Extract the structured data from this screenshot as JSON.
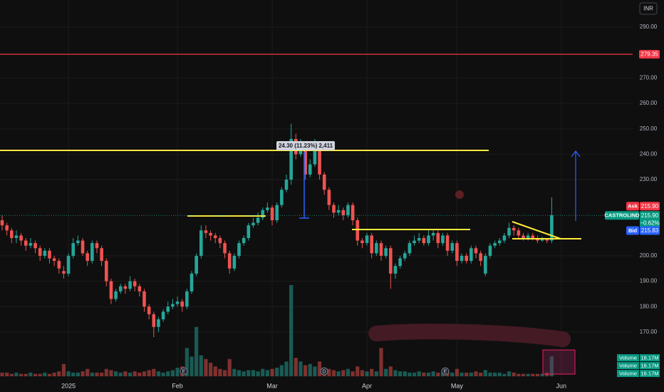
{
  "chart_data": {
    "type": "candlestick",
    "currency": "INR",
    "categories": [
      null,
      null,
      null,
      null,
      null,
      null,
      null,
      null,
      null,
      null,
      null,
      null,
      null,
      null,
      "2025",
      null,
      null,
      null,
      null,
      null,
      null,
      null,
      null,
      null,
      null,
      null,
      null,
      null,
      null,
      null,
      null,
      null,
      null,
      null,
      null,
      null,
      null,
      "Feb",
      null,
      null,
      null,
      null,
      null,
      null,
      null,
      null,
      null,
      null,
      null,
      null,
      null,
      null,
      null,
      null,
      null,
      null,
      null,
      "Mar",
      null,
      null,
      null,
      null,
      null,
      null,
      null,
      null,
      null,
      null,
      null,
      null,
      null,
      null,
      null,
      null,
      null,
      null,
      null,
      "Apr",
      null,
      null,
      null,
      null,
      null,
      null,
      null,
      null,
      null,
      null,
      null,
      null,
      null,
      null,
      null,
      null,
      null,
      null,
      "May",
      null,
      null,
      null,
      null,
      null,
      null,
      null,
      null,
      null,
      null,
      null,
      null,
      null,
      null,
      null,
      null,
      null,
      null,
      null,
      null,
      null,
      "Jun"
    ],
    "open": [
      214,
      212,
      210,
      207,
      208,
      206,
      204,
      205,
      203,
      200,
      202,
      199,
      198,
      194,
      193,
      200,
      205,
      206,
      201,
      198,
      205,
      203,
      198,
      190,
      183,
      186,
      188,
      187,
      190,
      188,
      186,
      180,
      177,
      172,
      175,
      178,
      180,
      181,
      182,
      180,
      186,
      193,
      200,
      210,
      209,
      208,
      207,
      205,
      201,
      195,
      200,
      205,
      207,
      212,
      213,
      215,
      218,
      219,
      214,
      220,
      226,
      230,
      246,
      240,
      244,
      232,
      236,
      244,
      232,
      226,
      220,
      217,
      218,
      216,
      220,
      214,
      206,
      205,
      208,
      201,
      205,
      200,
      203,
      193,
      196,
      199,
      201,
      205,
      206,
      207,
      205,
      208,
      209,
      205,
      208,
      202,
      205,
      198,
      200,
      198,
      203,
      201,
      193,
      200,
      204,
      205,
      206,
      208,
      211,
      210,
      208,
      207,
      208,
      207,
      206,
      206.5,
      206,
      null,
      null
    ],
    "high": [
      216,
      213,
      211,
      210,
      209,
      207,
      207,
      206,
      204,
      203,
      203,
      200,
      199,
      196,
      201,
      207,
      208,
      207,
      202,
      206,
      206,
      204,
      199,
      191,
      187,
      189,
      189,
      192,
      191,
      189,
      187,
      181,
      178,
      176,
      179,
      182,
      183,
      184,
      183,
      187,
      194,
      201,
      212,
      212,
      210,
      209,
      208,
      206,
      202,
      201,
      206,
      208,
      213,
      215,
      217,
      219,
      221,
      220,
      221,
      227,
      232,
      252,
      248,
      246,
      245,
      238,
      246,
      245,
      233,
      227,
      221,
      220,
      219,
      221,
      221,
      215,
      207,
      209,
      209,
      206,
      206,
      204,
      204,
      197,
      200,
      202,
      206,
      208,
      209,
      208,
      210,
      210,
      210,
      209,
      209,
      206,
      206,
      201,
      201,
      204,
      204,
      202,
      201,
      205,
      206,
      207,
      209,
      213,
      212,
      211,
      209,
      209,
      209,
      208,
      207.5,
      207,
      223,
      null,
      null
    ],
    "low": [
      210,
      208,
      205,
      205,
      204,
      202,
      203,
      201,
      198,
      199,
      197,
      196,
      193,
      191,
      192,
      199,
      204,
      200,
      196,
      197,
      201,
      196,
      188,
      181,
      182,
      185,
      185,
      186,
      186,
      184,
      178,
      175,
      168,
      170,
      174,
      177,
      179,
      180,
      178,
      179,
      185,
      192,
      199,
      207,
      206,
      205,
      203,
      199,
      193,
      194,
      199,
      204,
      206,
      211,
      212,
      214,
      217,
      212,
      213,
      219,
      225,
      228,
      238,
      239,
      230,
      231,
      235,
      230,
      224,
      218,
      215,
      216,
      214,
      215,
      212,
      204,
      203,
      204,
      199,
      200,
      198,
      199,
      187,
      191,
      195,
      198,
      200,
      204,
      205,
      204,
      204,
      206,
      203,
      204,
      200,
      201,
      196,
      197,
      197,
      197,
      199,
      196,
      192,
      199,
      203,
      204,
      205,
      207,
      208,
      207,
      206,
      206,
      206,
      205,
      205.5,
      205,
      205,
      null,
      null
    ],
    "close": [
      212,
      210,
      207,
      208,
      206,
      204,
      205,
      203,
      200,
      202,
      199,
      198,
      195,
      193,
      200,
      205,
      206,
      201,
      198,
      205,
      203,
      198,
      190,
      183,
      186,
      188,
      187,
      190,
      188,
      186,
      180,
      177,
      172,
      175,
      178,
      180,
      181,
      182,
      180,
      186,
      193,
      200,
      210,
      209,
      208,
      207,
      205,
      201,
      195,
      200,
      205,
      207,
      212,
      213,
      215,
      218,
      219,
      214,
      220,
      226,
      230,
      246,
      240,
      244,
      232,
      236,
      244,
      232,
      226,
      220,
      217,
      218,
      216,
      220,
      214,
      206,
      205,
      208,
      201,
      205,
      200,
      203,
      193,
      196,
      199,
      201,
      205,
      206,
      207,
      205,
      208,
      209,
      205,
      208,
      202,
      205,
      198,
      200,
      198,
      203,
      201,
      198,
      200,
      204,
      205,
      206,
      208,
      211,
      210,
      208,
      207,
      208,
      207,
      206,
      206.5,
      206,
      216,
      null,
      null
    ],
    "volume": [
      3,
      3,
      2,
      3,
      2,
      2,
      3,
      2,
      2,
      3,
      2,
      3,
      4,
      10,
      4,
      3,
      3,
      4,
      6,
      3,
      3,
      3,
      6,
      5,
      4,
      3,
      4,
      3,
      4,
      3,
      4,
      5,
      6,
      4,
      3,
      4,
      5,
      7,
      8,
      23,
      16,
      40,
      17,
      14,
      11,
      8,
      6,
      5,
      14,
      6,
      5,
      4,
      5,
      5,
      4,
      6,
      5,
      6,
      7,
      9,
      12,
      74,
      15,
      12,
      9,
      10,
      8,
      12,
      7,
      6,
      5,
      4,
      5,
      6,
      4,
      8,
      5,
      4,
      6,
      4,
      23,
      6,
      8,
      5,
      4,
      4,
      3,
      3,
      4,
      3,
      3,
      4,
      3,
      3,
      4,
      3,
      6,
      3,
      3,
      3,
      4,
      3,
      5,
      3,
      3,
      3,
      2,
      4,
      3,
      2,
      2,
      2,
      2,
      2,
      2,
      3,
      16.17,
      null,
      null
    ],
    "up_color": "#26a69a",
    "down_color": "#ef5350",
    "ylim": [
      150.6,
      300.7
    ],
    "yticks": [
      {
        "value": 290,
        "label": "290.00"
      },
      {
        "value": 270,
        "label": "270.00"
      },
      {
        "value": 260,
        "label": "260.00"
      },
      {
        "value": 250,
        "label": "250.00"
      },
      {
        "value": 240,
        "label": "240.00"
      },
      {
        "value": 230,
        "label": "230.00"
      },
      {
        "value": 200,
        "label": "200.00"
      },
      {
        "value": 190,
        "label": "190.00"
      },
      {
        "value": 180,
        "label": "180.00"
      },
      {
        "value": 170,
        "label": "170.00"
      }
    ],
    "grid": true,
    "level": 279.35,
    "price_labels": [
      {
        "name": "Ask",
        "price": {
          "value": 215.9,
          "label": "215.90"
        }
      },
      {
        "name": "CASTROLIND",
        "price": {
          "value": 215.9,
          "label": "215.90"
        },
        "change": {
          "value": -0.62,
          "label": "−0.62%"
        }
      },
      {
        "name": "Bid",
        "price": {
          "value": 215.83,
          "label": "215.83"
        }
      }
    ],
    "measure_label": "24.30 (11.23%) 2,411",
    "events": [
      "E",
      "D",
      "E"
    ],
    "legend": [
      {
        "name": "Volume",
        "value": "16.17M"
      },
      {
        "name": "Volume",
        "value": "16.17M"
      },
      {
        "name": "Volume",
        "value": "16.17M"
      }
    ]
  }
}
